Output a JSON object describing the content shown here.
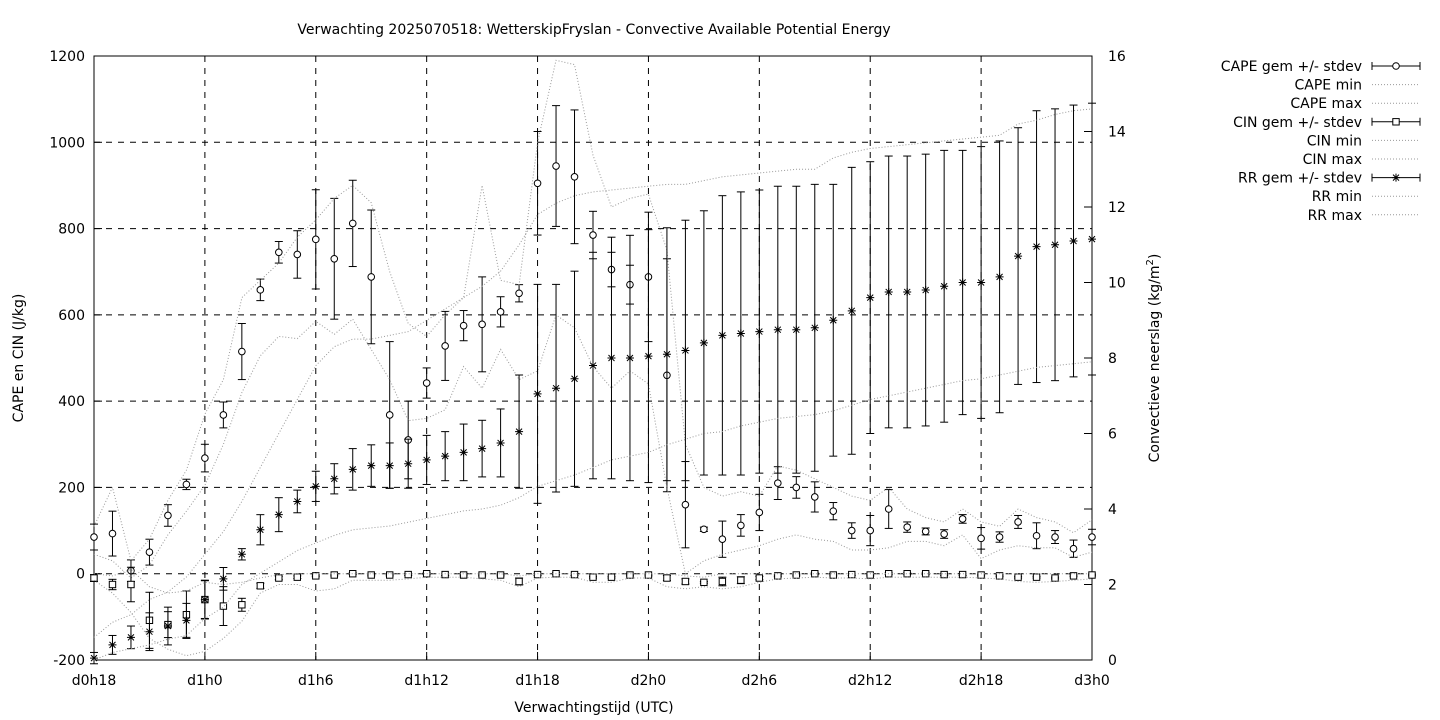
{
  "chart_data": {
    "type": "scatter",
    "title": "Verwachting 2025070518: WetterskipFryslan - Convective Available Potential Energy",
    "xlabel": "Verwachtingstijd (UTC)",
    "ylabel": "CAPE en CIN (J/kg)",
    "y2label": "Convectieve neerslag (kg/m2)",
    "y2label_main": "Convectieve neerslag (kg/m",
    "y2label_sup": "2",
    "y2label_end": ")",
    "xlim": [
      18,
      72
    ],
    "ylim": [
      -200,
      1200
    ],
    "y2lim": [
      0,
      16
    ],
    "grid": true,
    "legend_position": "outside-right",
    "x_ticks": [
      {
        "x": 18,
        "label": "d0h18"
      },
      {
        "x": 24,
        "label": "d1h0"
      },
      {
        "x": 30,
        "label": "d1h6"
      },
      {
        "x": 36,
        "label": "d1h12"
      },
      {
        "x": 42,
        "label": "d1h18"
      },
      {
        "x": 48,
        "label": "d2h0"
      },
      {
        "x": 54,
        "label": "d2h6"
      },
      {
        "x": 60,
        "label": "d2h12"
      },
      {
        "x": 66,
        "label": "d2h18"
      },
      {
        "x": 72,
        "label": "d3h0"
      }
    ],
    "y_ticks": [
      -200,
      0,
      200,
      400,
      600,
      800,
      1000,
      1200
    ],
    "y2_ticks": [
      0,
      2,
      4,
      6,
      8,
      10,
      12,
      14,
      16
    ],
    "x": [
      18,
      19,
      20,
      21,
      22,
      23,
      24,
      25,
      26,
      27,
      28,
      29,
      30,
      31,
      32,
      33,
      34,
      35,
      36,
      37,
      38,
      39,
      40,
      41,
      42,
      43,
      44,
      45,
      46,
      47,
      48,
      49,
      50,
      51,
      52,
      53,
      54,
      55,
      56,
      57,
      58,
      59,
      60,
      61,
      62,
      63,
      64,
      65,
      66,
      67,
      68,
      69,
      70,
      71,
      72
    ],
    "series": [
      {
        "name": "CAPE gem +/- stdev",
        "axis": "y1",
        "marker": "circle",
        "values": [
          85,
          93,
          7,
          50,
          135,
          207,
          268,
          368,
          515,
          658,
          745,
          740,
          775,
          730,
          812,
          688,
          368,
          310,
          442,
          528,
          575,
          578,
          607,
          650,
          905,
          945,
          920,
          785,
          705,
          670,
          688,
          460,
          160,
          103,
          80,
          112,
          142,
          210,
          200,
          178,
          145,
          100,
          100,
          150,
          108,
          98,
          92,
          127,
          82,
          85,
          120,
          88,
          85,
          58,
          85
        ],
        "errors": [
          30,
          52,
          25,
          30,
          25,
          12,
          32,
          30,
          65,
          25,
          25,
          55,
          115,
          140,
          100,
          155,
          170,
          90,
          35,
          80,
          35,
          110,
          35,
          20,
          120,
          140,
          155,
          55,
          40,
          45,
          150,
          270,
          100,
          5,
          42,
          25,
          42,
          38,
          25,
          35,
          20,
          18,
          35,
          45,
          12,
          8,
          10,
          10,
          25,
          12,
          15,
          30,
          15,
          20,
          18
        ]
      },
      {
        "name": "CAPE min",
        "axis": "y1",
        "marker": "dotted-line",
        "values": [
          45,
          30,
          -10,
          20,
          90,
          145,
          205,
          300,
          420,
          505,
          550,
          545,
          585,
          555,
          590,
          520,
          450,
          355,
          360,
          380,
          480,
          430,
          520,
          450,
          470,
          600,
          570,
          480,
          430,
          470,
          440,
          200,
          0,
          30,
          45,
          55,
          65,
          80,
          90,
          80,
          75,
          55,
          55,
          60,
          75,
          75,
          65,
          90,
          35,
          55,
          65,
          60,
          60,
          38,
          50
        ]
      },
      {
        "name": "CAPE max",
        "axis": "y1",
        "marker": "dotted-line",
        "values": [
          110,
          200,
          30,
          80,
          170,
          240,
          370,
          450,
          640,
          680,
          720,
          780,
          820,
          870,
          900,
          860,
          700,
          580,
          550,
          600,
          640,
          900,
          680,
          670,
          1000,
          1190,
          1180,
          970,
          850,
          870,
          880,
          750,
          300,
          200,
          180,
          190,
          180,
          250,
          240,
          220,
          200,
          180,
          170,
          200,
          150,
          130,
          120,
          150,
          120,
          110,
          150,
          130,
          120,
          95,
          125
        ]
      },
      {
        "name": "CIN gem +/- stdev",
        "axis": "y1",
        "marker": "square",
        "values": [
          -10,
          -25,
          -25,
          -108,
          -118,
          -95,
          -60,
          -75,
          -72,
          -28,
          -10,
          -8,
          -5,
          -3,
          0,
          -3,
          -3,
          -2,
          0,
          -2,
          -3,
          -3,
          -3,
          -18,
          -2,
          0,
          -2,
          -8,
          -8,
          -3,
          -3,
          -10,
          -18,
          -20,
          -18,
          -15,
          -10,
          -5,
          -3,
          0,
          -3,
          -2,
          -3,
          0,
          0,
          0,
          -2,
          -2,
          -3,
          -5,
          -8,
          -8,
          -10,
          -5,
          -3
        ],
        "errors": [
          8,
          12,
          40,
          65,
          30,
          55,
          45,
          45,
          15,
          6,
          4,
          3,
          2,
          2,
          2,
          2,
          2,
          2,
          2,
          2,
          2,
          2,
          2,
          8,
          2,
          2,
          2,
          2,
          2,
          2,
          2,
          6,
          6,
          2,
          10,
          8,
          4,
          2,
          2,
          2,
          2,
          2,
          2,
          2,
          2,
          2,
          2,
          2,
          2,
          2,
          2,
          2,
          2,
          2,
          2
        ]
      },
      {
        "name": "CIN min",
        "axis": "y1",
        "marker": "dotted-line",
        "values": [
          -15,
          -45,
          -90,
          -150,
          -175,
          -190,
          -180,
          -150,
          -110,
          -45,
          -25,
          -25,
          -40,
          -35,
          -15,
          -15,
          -15,
          -12,
          -8,
          -8,
          -8,
          -12,
          -15,
          -30,
          -10,
          -8,
          -8,
          -20,
          -20,
          -10,
          -10,
          -30,
          -35,
          -30,
          -35,
          -30,
          -20,
          -12,
          -10,
          -8,
          -10,
          -10,
          -12,
          -8,
          -8,
          -8,
          -8,
          -8,
          -10,
          -12,
          -18,
          -20,
          -18,
          -15,
          -12
        ]
      },
      {
        "name": "CIN max",
        "axis": "y1",
        "marker": "dotted-line",
        "values": [
          0,
          -5,
          10,
          -30,
          -45,
          -40,
          -20,
          -25,
          -20,
          -10,
          -2,
          0,
          0,
          0,
          0,
          0,
          0,
          0,
          0,
          0,
          0,
          0,
          0,
          -5,
          0,
          0,
          0,
          0,
          0,
          0,
          0,
          0,
          -5,
          -8,
          0,
          0,
          0,
          0,
          0,
          0,
          0,
          0,
          0,
          0,
          0,
          0,
          0,
          0,
          0,
          0,
          0,
          0,
          0,
          0,
          0
        ]
      },
      {
        "name": "RR gem +/- stdev",
        "axis": "y2",
        "marker": "asterisk",
        "values": [
          0.05,
          0.4,
          0.6,
          0.75,
          0.9,
          1.05,
          1.6,
          2.15,
          2.8,
          3.45,
          3.85,
          4.2,
          4.6,
          4.8,
          5.05,
          5.15,
          5.15,
          5.2,
          5.3,
          5.4,
          5.5,
          5.6,
          5.75,
          6.05,
          7.05,
          7.2,
          7.45,
          7.8,
          8.0,
          8.0,
          8.05,
          8.1,
          8.2,
          8.4,
          8.6,
          8.65,
          8.7,
          8.75,
          8.75,
          8.8,
          9.0,
          9.25,
          9.6,
          9.75,
          9.75,
          9.8,
          9.9,
          10.0,
          10.0,
          10.15,
          10.7,
          10.95,
          11.0,
          11.1,
          11.15
        ],
        "errors": [
          0.15,
          0.25,
          0.3,
          0.5,
          0.5,
          0.45,
          0.5,
          0.3,
          0.15,
          0.4,
          0.45,
          0.3,
          0.4,
          0.4,
          0.55,
          0.55,
          0.6,
          0.65,
          0.65,
          0.65,
          0.75,
          0.75,
          0.9,
          1.5,
          2.9,
          2.75,
          2.85,
          3.0,
          3.2,
          3.25,
          3.35,
          3.35,
          3.45,
          3.5,
          3.7,
          3.75,
          3.75,
          3.8,
          3.8,
          3.8,
          3.6,
          3.8,
          3.6,
          3.6,
          3.6,
          3.6,
          3.6,
          3.5,
          3.6,
          3.6,
          3.4,
          3.6,
          3.6,
          3.6,
          3.6
        ]
      },
      {
        "name": "RR min",
        "axis": "y2",
        "marker": "dotted-line",
        "values": [
          0,
          0.2,
          0.3,
          0.4,
          0.55,
          0.65,
          1.1,
          1.4,
          2.0,
          2.3,
          2.6,
          2.9,
          3.1,
          3.3,
          3.45,
          3.5,
          3.55,
          3.65,
          3.75,
          3.85,
          3.95,
          4.0,
          4.1,
          4.3,
          4.6,
          4.75,
          4.9,
          5.1,
          5.3,
          5.4,
          5.5,
          5.7,
          5.85,
          6.0,
          6.05,
          6.2,
          6.3,
          6.4,
          6.45,
          6.5,
          6.6,
          6.75,
          6.9,
          7.0,
          7.1,
          7.2,
          7.3,
          7.4,
          7.45,
          7.55,
          7.65,
          7.75,
          7.8,
          7.85,
          7.9
        ]
      },
      {
        "name": "RR max",
        "axis": "y2",
        "marker": "dotted-line",
        "values": [
          0.6,
          1.0,
          1.2,
          1.6,
          1.8,
          2.2,
          2.8,
          3.4,
          4.2,
          5.1,
          6.0,
          6.9,
          7.8,
          8.3,
          8.5,
          8.5,
          8.6,
          8.7,
          9.0,
          9.3,
          9.6,
          9.9,
          10.3,
          11.0,
          11.8,
          12.1,
          12.3,
          12.4,
          12.45,
          12.5,
          12.55,
          12.6,
          12.6,
          12.7,
          12.8,
          12.85,
          12.9,
          12.95,
          13.0,
          13.0,
          13.3,
          13.45,
          13.55,
          13.6,
          13.65,
          13.7,
          13.75,
          13.8,
          13.85,
          13.9,
          14.2,
          14.3,
          14.45,
          14.55,
          14.6
        ]
      }
    ]
  }
}
